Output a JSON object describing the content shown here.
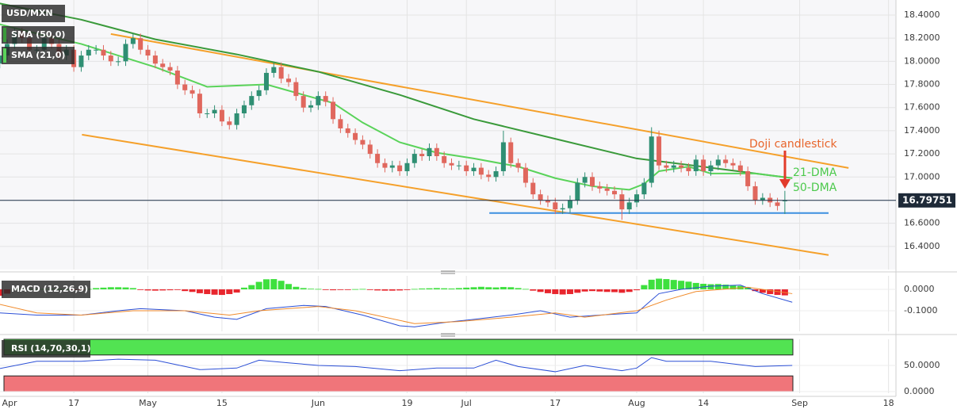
{
  "chart_data": [
    {
      "type": "candlestick",
      "title": "USD/MXN",
      "up_color": "#2f8f73",
      "down_color": "#e0675d",
      "open": [
        17.98,
        18.05,
        18.15,
        18.25,
        18.2,
        18.1,
        18.1,
        18.2,
        18.15,
        18.05,
        18.1,
        17.95,
        18.05,
        18.1,
        18.1,
        18.05,
        18.0,
        18.0,
        18.15,
        18.2,
        18.1,
        18.05,
        17.98,
        17.95,
        17.92,
        17.8,
        17.75,
        17.72,
        17.55,
        17.55,
        17.58,
        17.48,
        17.45,
        17.55,
        17.62,
        17.7,
        17.75,
        17.9,
        17.95,
        17.85,
        17.82,
        17.7,
        17.6,
        17.62,
        17.7,
        17.65,
        17.5,
        17.42,
        17.38,
        17.32,
        17.28,
        17.2,
        17.12,
        17.08,
        17.1,
        17.05,
        17.12,
        17.2,
        17.18,
        17.25,
        17.18,
        17.12,
        17.1,
        17.1,
        17.05,
        17.08,
        17.02,
        17.0,
        17.05,
        17.3,
        17.12,
        17.08,
        16.95,
        16.85,
        16.8,
        16.78,
        16.72,
        16.73,
        16.8,
        16.95,
        17.0,
        16.92,
        16.9,
        16.88,
        16.85,
        16.72,
        16.78,
        16.85,
        16.95,
        17.35,
        17.1,
        17.08,
        17.1,
        17.08,
        17.05,
        17.15,
        17.05,
        17.1,
        17.15,
        17.12,
        17.1,
        17.05,
        16.92,
        16.8,
        16.82,
        16.78,
        16.79
      ],
      "high": [
        18.09,
        18.19,
        18.29,
        18.29,
        18.24,
        18.14,
        18.24,
        18.24,
        18.19,
        18.14,
        18.14,
        18.09,
        18.14,
        18.14,
        18.14,
        18.09,
        18.04,
        18.19,
        18.24,
        18.24,
        18.14,
        18.09,
        18.02,
        17.99,
        17.96,
        17.84,
        17.79,
        17.76,
        17.59,
        17.62,
        17.62,
        17.52,
        17.59,
        17.66,
        17.74,
        17.79,
        17.94,
        17.99,
        17.99,
        17.89,
        17.86,
        17.74,
        17.66,
        17.74,
        17.74,
        17.69,
        17.54,
        17.46,
        17.42,
        17.36,
        17.32,
        17.24,
        17.16,
        17.14,
        17.14,
        17.16,
        17.24,
        17.24,
        17.29,
        17.29,
        17.22,
        17.16,
        17.14,
        17.14,
        17.12,
        17.12,
        17.06,
        17.09,
        17.4,
        17.34,
        17.16,
        17.12,
        16.99,
        16.89,
        16.84,
        16.82,
        16.77,
        16.84,
        16.99,
        17.04,
        17.04,
        16.96,
        16.94,
        16.92,
        16.89,
        16.82,
        16.89,
        16.99,
        17.43,
        17.4,
        17.14,
        17.14,
        17.14,
        17.12,
        17.19,
        17.19,
        17.14,
        17.19,
        17.19,
        17.16,
        17.14,
        17.09,
        16.96,
        16.86,
        16.86,
        16.82,
        16.88
      ],
      "low": [
        17.94,
        18.01,
        18.11,
        18.16,
        18.06,
        18.06,
        18.06,
        18.11,
        18.01,
        18.01,
        17.91,
        17.91,
        18.01,
        18.06,
        18.01,
        17.96,
        17.96,
        17.96,
        18.11,
        18.06,
        18.01,
        17.94,
        17.91,
        17.88,
        17.76,
        17.71,
        17.68,
        17.51,
        17.51,
        17.51,
        17.44,
        17.41,
        17.41,
        17.51,
        17.58,
        17.66,
        17.71,
        17.86,
        17.81,
        17.78,
        17.66,
        17.56,
        17.56,
        17.58,
        17.61,
        17.46,
        17.38,
        17.34,
        17.28,
        17.24,
        17.16,
        17.08,
        17.04,
        17.04,
        17.01,
        17.01,
        17.08,
        17.14,
        17.14,
        17.14,
        17.08,
        17.06,
        17.06,
        17.01,
        17.01,
        16.98,
        16.96,
        16.96,
        17.01,
        17.08,
        17.04,
        16.91,
        16.81,
        16.76,
        16.74,
        16.68,
        16.68,
        16.69,
        16.76,
        16.91,
        16.88,
        16.86,
        16.84,
        16.81,
        16.63,
        16.68,
        16.74,
        16.81,
        16.91,
        17.06,
        17.04,
        17.04,
        17.04,
        17.01,
        17.01,
        17.01,
        17.01,
        17.06,
        17.08,
        17.06,
        17.01,
        16.88,
        16.76,
        16.76,
        16.74,
        16.71,
        16.68
      ],
      "close": [
        18.05,
        18.15,
        18.25,
        18.2,
        18.1,
        18.1,
        18.2,
        18.15,
        18.05,
        18.1,
        17.95,
        18.05,
        18.1,
        18.1,
        18.05,
        18.0,
        18.0,
        18.15,
        18.2,
        18.1,
        18.05,
        17.98,
        17.95,
        17.92,
        17.8,
        17.75,
        17.72,
        17.55,
        17.55,
        17.58,
        17.48,
        17.45,
        17.55,
        17.62,
        17.7,
        17.75,
        17.9,
        17.95,
        17.85,
        17.82,
        17.7,
        17.6,
        17.62,
        17.7,
        17.65,
        17.5,
        17.42,
        17.38,
        17.32,
        17.28,
        17.2,
        17.12,
        17.08,
        17.1,
        17.05,
        17.12,
        17.2,
        17.18,
        17.25,
        17.18,
        17.12,
        17.1,
        17.1,
        17.05,
        17.08,
        17.02,
        17.0,
        17.05,
        17.3,
        17.12,
        17.08,
        16.95,
        16.85,
        16.8,
        16.78,
        16.72,
        16.73,
        16.8,
        16.95,
        17.0,
        16.92,
        16.9,
        16.88,
        16.85,
        16.72,
        16.78,
        16.85,
        16.95,
        17.35,
        17.1,
        17.08,
        17.1,
        17.08,
        17.05,
        17.15,
        17.05,
        17.1,
        17.15,
        17.12,
        17.1,
        17.05,
        16.92,
        16.8,
        16.82,
        16.78,
        16.75,
        16.8
      ],
      "series": [
        {
          "name": "SMA (50,0)",
          "color": "#3a9a3a",
          "x": [
            0,
            11,
            21,
            32,
            43,
            54,
            64,
            75,
            86,
            96,
            107
          ],
          "values": [
            18.5,
            18.36,
            18.19,
            18.06,
            17.91,
            17.71,
            17.5,
            17.33,
            17.16,
            17.08,
            16.99
          ]
        },
        {
          "name": "SMA (21,0)",
          "color": "#5ad35a",
          "x": [
            0,
            5,
            11,
            16,
            21,
            28,
            32,
            36,
            41,
            45,
            49,
            54,
            59,
            64,
            70,
            75,
            80,
            85,
            87,
            89,
            93,
            96,
            102,
            107
          ],
          "values": [
            18.32,
            18.24,
            18.15,
            18.05,
            17.95,
            17.78,
            17.79,
            17.8,
            17.71,
            17.64,
            17.47,
            17.3,
            17.21,
            17.16,
            17.09,
            16.99,
            16.92,
            16.89,
            16.94,
            17.05,
            17.09,
            17.03,
            17.03,
            16.99
          ]
        }
      ],
      "trendlines": [
        {
          "color": "#f5a02a",
          "x": [
            15,
            114.6
          ],
          "values": [
            18.236,
            17.078
          ]
        },
        {
          "color": "#f5a02a",
          "x": [
            11.1,
            111.9
          ],
          "values": [
            17.366,
            16.325
          ]
        },
        {
          "color": "#3d8fe0",
          "x": [
            66.1,
            111.9
          ],
          "values": [
            16.688,
            16.688
          ]
        }
      ],
      "last_price": 16.79751,
      "annotations": [
        {
          "text": "Doji candlestick",
          "color": "#e8652b"
        },
        {
          "text": "21-DMA",
          "color": "#4cc94c"
        },
        {
          "text": "50-DMA",
          "color": "#4cc94c"
        }
      ],
      "xlim": [
        -2,
        121
      ],
      "xticks": [
        {
          "value": -2,
          "label": "Apr"
        },
        {
          "value": 10,
          "label": "17"
        },
        {
          "value": 20,
          "label": "May"
        },
        {
          "value": 30,
          "label": "15"
        },
        {
          "value": 43,
          "label": "Jun"
        },
        {
          "value": 55,
          "label": "19"
        },
        {
          "value": 63,
          "label": "Jul"
        },
        {
          "value": 75,
          "label": "17"
        },
        {
          "value": 86,
          "label": "Aug"
        },
        {
          "value": 95,
          "label": "14"
        },
        {
          "value": 108,
          "label": "Sep"
        },
        {
          "value": 120,
          "label": "18"
        }
      ],
      "ylim": [
        16.2,
        18.53
      ],
      "yticks": [
        {
          "value": 16.4,
          "label": "16.4000"
        },
        {
          "value": 16.6,
          "label": "16.6000"
        },
        {
          "value": 16.8,
          "label": "16.8000"
        },
        {
          "value": 17.0,
          "label": "17.0000"
        },
        {
          "value": 17.2,
          "label": "17.2000"
        },
        {
          "value": 17.4,
          "label": "17.4000"
        },
        {
          "value": 17.6,
          "label": "17.6000"
        },
        {
          "value": 17.8,
          "label": "17.8000"
        },
        {
          "value": 18.0,
          "label": "18.0000"
        },
        {
          "value": 18.2,
          "label": "18.2000"
        },
        {
          "value": 18.4,
          "label": "18.4000"
        }
      ],
      "grid": true
    },
    {
      "type": "macd",
      "title": "MACD (12,26,9)",
      "up_color": "#3ee03e",
      "down_color": "#e8262e",
      "histogram": [
        -0.03,
        -0.02,
        0.002,
        0.003,
        0.002,
        0.001,
        0.002,
        0.003,
        0.002,
        0.001,
        -0.002,
        -0.003,
        0.002,
        0.006,
        0.008,
        0.01,
        0.01,
        0.009,
        0.006,
        -0.003,
        -0.005,
        -0.006,
        -0.005,
        -0.004,
        -0.003,
        -0.008,
        -0.012,
        -0.018,
        -0.022,
        -0.025,
        -0.026,
        -0.022,
        -0.015,
        0.008,
        0.02,
        0.035,
        0.047,
        0.048,
        0.04,
        0.025,
        0.012,
        0.006,
        0.003,
        0.002,
        -0.002,
        -0.004,
        -0.003,
        -0.002,
        0.001,
        0.002,
        -0.003,
        -0.005,
        -0.006,
        -0.006,
        -0.005,
        -0.003,
        0.002,
        0.004,
        0.005,
        0.006,
        0.005,
        0.004,
        0.006,
        0.008,
        0.01,
        0.012,
        0.01,
        0.009,
        0.011,
        0.01,
        0.006,
        0.002,
        -0.006,
        -0.012,
        -0.018,
        -0.022,
        -0.024,
        -0.022,
        -0.016,
        -0.01,
        -0.008,
        -0.01,
        -0.012,
        -0.013,
        -0.016,
        -0.012,
        -0.004,
        0.02,
        0.045,
        0.05,
        0.048,
        0.044,
        0.04,
        0.036,
        0.03,
        0.026,
        0.024,
        0.025,
        0.022,
        0.02,
        0.016,
        0.01,
        -0.008,
        -0.016,
        -0.022,
        -0.026,
        -0.028
      ],
      "series": [
        {
          "color": "#2b4fd6",
          "x": [
            0,
            5,
            11,
            16,
            19,
            25,
            29,
            32,
            36,
            41,
            44,
            49,
            54,
            56,
            60,
            64,
            69,
            73,
            77,
            81,
            86,
            89,
            92,
            96,
            100,
            103,
            107
          ],
          "values": [
            -0.11,
            -0.12,
            -0.12,
            -0.1,
            -0.09,
            -0.1,
            -0.13,
            -0.14,
            -0.09,
            -0.075,
            -0.08,
            -0.12,
            -0.17,
            -0.175,
            -0.155,
            -0.14,
            -0.12,
            -0.1,
            -0.13,
            -0.12,
            -0.11,
            -0.02,
            0.0,
            0.015,
            0.02,
            -0.02,
            -0.06
          ]
        },
        {
          "color": "#f08a2a",
          "x": [
            0,
            5,
            11,
            18,
            25,
            31,
            35,
            43,
            48,
            56,
            62,
            69,
            75,
            79,
            86,
            90,
            94,
            101,
            107
          ],
          "values": [
            -0.07,
            -0.11,
            -0.12,
            -0.1,
            -0.1,
            -0.12,
            -0.1,
            -0.08,
            -0.1,
            -0.16,
            -0.15,
            -0.13,
            -0.11,
            -0.13,
            -0.1,
            -0.05,
            -0.01,
            0.01,
            -0.02
          ]
        }
      ],
      "ylim": [
        -0.196,
        0.063
      ],
      "yticks": [
        {
          "value": 0,
          "label": "0.0000"
        },
        {
          "value": -0.1,
          "label": "-0.1000"
        }
      ]
    },
    {
      "type": "line",
      "title": "RSI (14,70,30,1)",
      "bands": [
        {
          "from": 70,
          "to": 100,
          "color": "#52e352"
        },
        {
          "from": 0,
          "to": 30,
          "color": "#f0757a"
        }
      ],
      "series": [
        {
          "color": "#2b4fd6",
          "x": [
            0,
            5,
            11,
            16,
            21,
            27,
            32,
            35,
            39,
            43,
            48,
            54,
            59,
            64,
            67,
            70,
            75,
            79,
            84,
            86,
            88,
            90,
            96,
            102,
            107
          ],
          "values": [
            44,
            58,
            58,
            62,
            60,
            42,
            45,
            60,
            55,
            50,
            48,
            40,
            45,
            45,
            60,
            48,
            38,
            50,
            40,
            45,
            65,
            58,
            58,
            48,
            50
          ]
        }
      ],
      "ylim": [
        -3,
        100
      ],
      "yticks": [
        {
          "value": 50,
          "label": "50.0000"
        },
        {
          "value": 0,
          "label": "0.0000"
        }
      ]
    }
  ]
}
